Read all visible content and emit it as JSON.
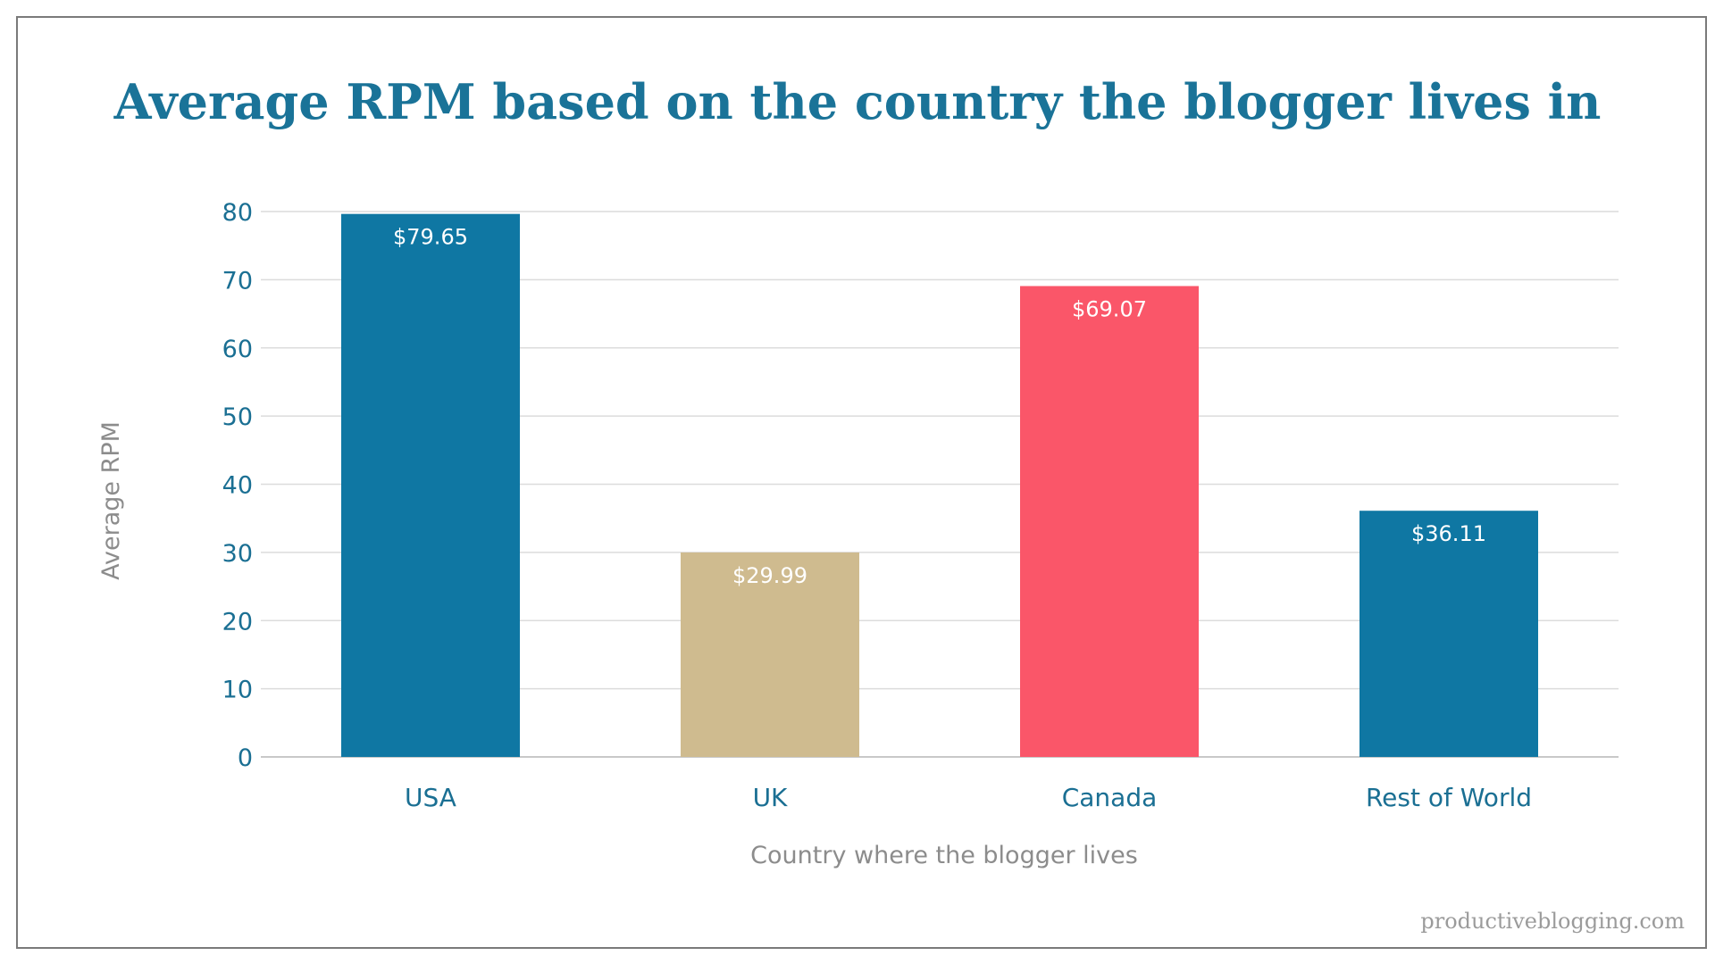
{
  "chart_data": {
    "type": "bar",
    "title": "Average RPM based on the country the blogger lives in",
    "xlabel": "Country where the blogger lives",
    "ylabel": "Average RPM",
    "categories": [
      "USA",
      "UK",
      "Canada",
      "Rest of World"
    ],
    "values": [
      79.65,
      29.99,
      69.07,
      36.11
    ],
    "data_labels": [
      "$79.65",
      "$29.99",
      "$69.07",
      "$36.11"
    ],
    "bar_colors": [
      "#0f77a3",
      "#cfbb8f",
      "#fa5669",
      "#0f77a3"
    ],
    "ylim": [
      0,
      80
    ],
    "yticks": [
      "0",
      "10",
      "20",
      "30",
      "40",
      "50",
      "60",
      "70",
      "80"
    ],
    "grid": true,
    "legend": "none"
  },
  "watermark": "productiveblogging.com",
  "colors": {
    "title": "#1a7398",
    "tick_labels": "#1a6f93",
    "axis_titles": "#8c8c8c",
    "gridlines": "#dcdcdc"
  }
}
